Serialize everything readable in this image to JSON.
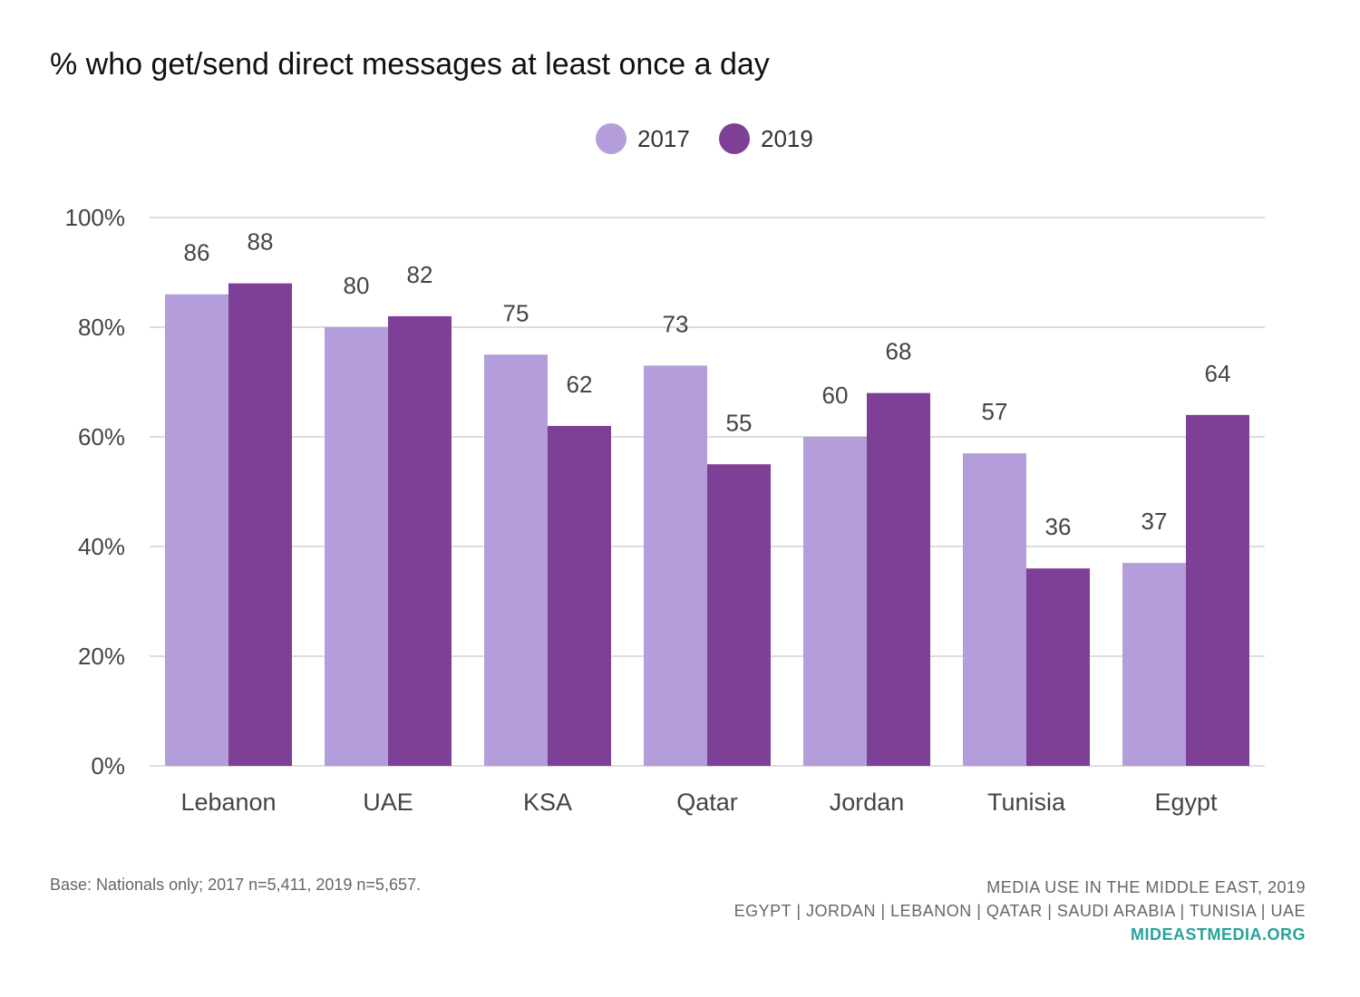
{
  "title": "% who get/send direct messages at least once a day",
  "colors": {
    "series_2017": "#b39ddb",
    "series_2019": "#7e3f96",
    "grid": "#dddddd",
    "tick_text": "#444444"
  },
  "chart_data": {
    "type": "bar",
    "title": "% who get/send direct messages at least once a day",
    "categories": [
      "Lebanon",
      "UAE",
      "KSA",
      "Qatar",
      "Jordan",
      "Tunisia",
      "Egypt"
    ],
    "series": [
      {
        "name": "2017",
        "values": [
          86,
          80,
          75,
          73,
          60,
          57,
          37
        ]
      },
      {
        "name": "2019",
        "values": [
          88,
          82,
          62,
          55,
          68,
          36,
          64
        ]
      }
    ],
    "yticks": [
      "0%",
      "20%",
      "40%",
      "60%",
      "80%",
      "100%"
    ],
    "ylim": [
      0,
      100
    ],
    "xlabel": "",
    "ylabel": "",
    "grid": true,
    "legend": "top-center",
    "data_labels": true
  },
  "footer": {
    "base_note": "Base: Nationals only; 2017 n=5,411, 2019 n=5,657.",
    "source_line1": "MEDIA USE IN THE MIDDLE EAST, 2019",
    "source_line2": "EGYPT | JORDAN | LEBANON | QATAR | SAUDI ARABIA | TUNISIA | UAE",
    "site": "MIDEASTMEDIA.ORG"
  }
}
